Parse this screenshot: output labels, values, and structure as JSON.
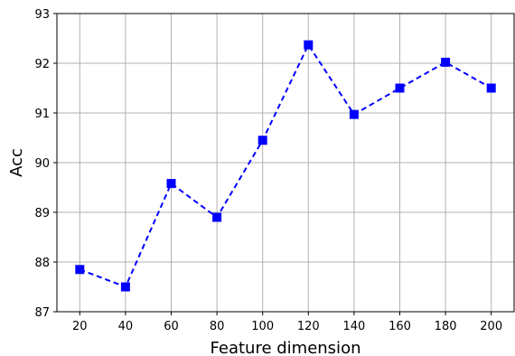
{
  "chart_data": {
    "type": "line",
    "xlabel": "Feature dimension",
    "ylabel": "Acc",
    "x": [
      20,
      40,
      60,
      80,
      100,
      120,
      140,
      160,
      180,
      200
    ],
    "x_ticks": [
      20,
      40,
      60,
      80,
      100,
      120,
      140,
      160,
      180,
      200
    ],
    "y_ticks": [
      87,
      88,
      89,
      90,
      91,
      92,
      93
    ],
    "ylim": [
      87,
      93
    ],
    "xlim": [
      10,
      210
    ],
    "grid": true,
    "legend": "none",
    "series": [
      {
        "values": [
          87.85,
          87.5,
          89.58,
          88.9,
          90.45,
          92.37,
          90.97,
          91.5,
          92.02,
          91.5
        ],
        "color": "#0000ff",
        "line_style": "dashed",
        "marker": "square"
      }
    ]
  }
}
